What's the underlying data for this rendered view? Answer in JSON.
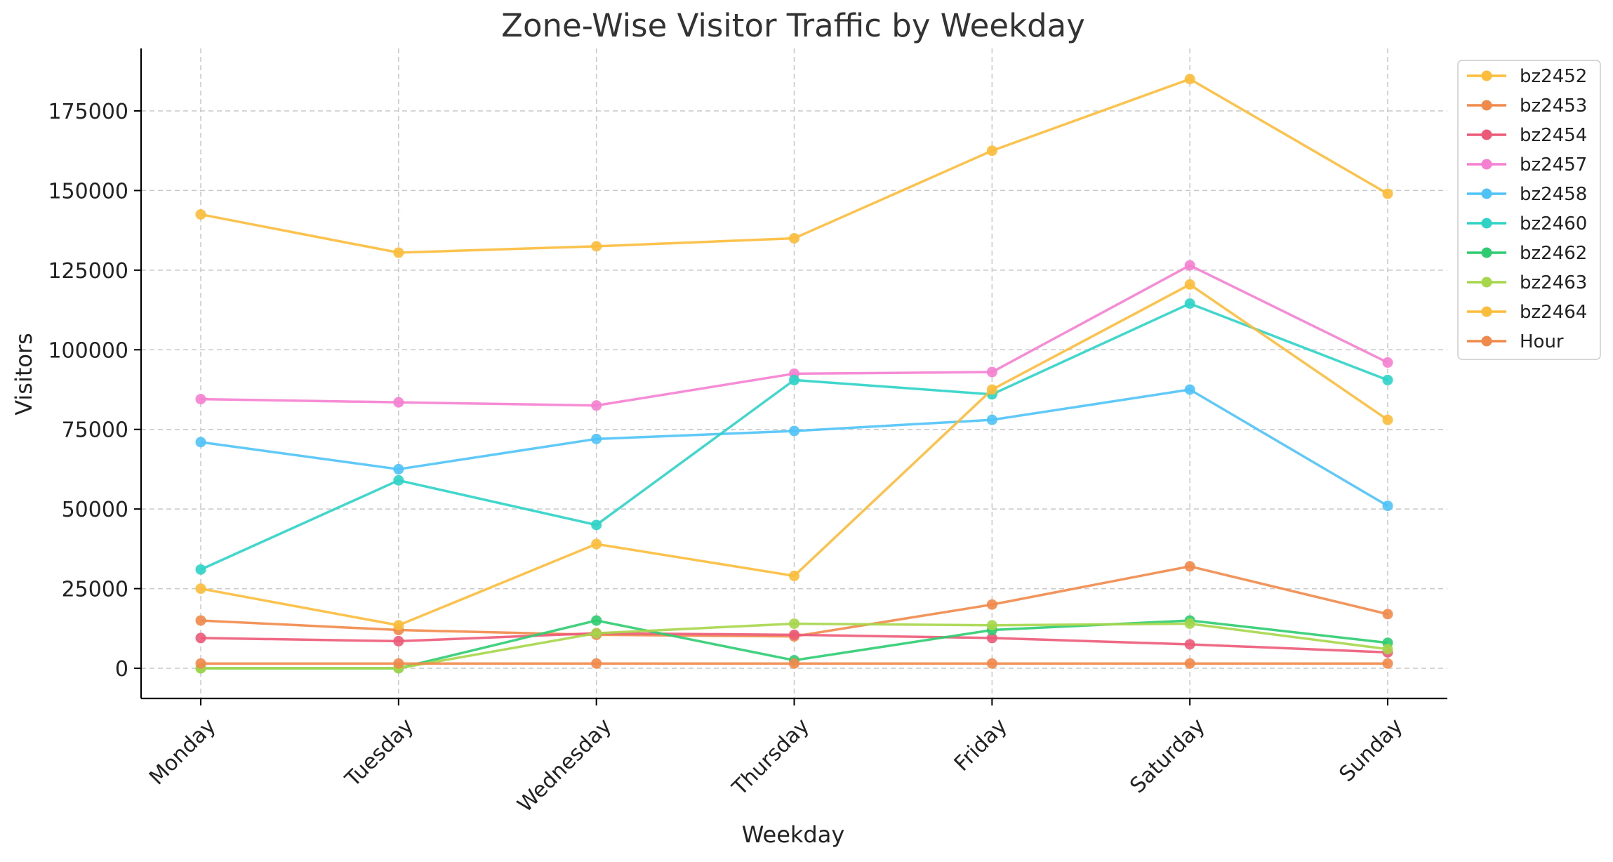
{
  "chart_data": {
    "type": "line",
    "title": "Zone-Wise Visitor Traffic by Weekday",
    "xlabel": "Weekday",
    "ylabel": "Visitors",
    "categories": [
      "Monday",
      "Tuesday",
      "Wednesday",
      "Thursday",
      "Friday",
      "Saturday",
      "Sunday"
    ],
    "ylim": [
      -9000,
      194000
    ],
    "yticks": [
      0,
      25000,
      50000,
      75000,
      100000,
      125000,
      150000,
      175000
    ],
    "grid": true,
    "legend_position": "top-right, outside plot",
    "series": [
      {
        "name": "bz2452",
        "color": "#fbbd3b",
        "values": [
          142500,
          130500,
          132500,
          135000,
          162500,
          185000,
          149000
        ]
      },
      {
        "name": "bz2453",
        "color": "#f08a4b",
        "values": [
          15000,
          12000,
          10500,
          10000,
          20000,
          32000,
          17000
        ]
      },
      {
        "name": "bz2454",
        "color": "#ec5a78",
        "values": [
          9500,
          8500,
          11000,
          10500,
          9500,
          7500,
          5000
        ]
      },
      {
        "name": "bz2457",
        "color": "#f57fd0",
        "values": [
          84500,
          83500,
          82500,
          92500,
          93000,
          126500,
          96000
        ]
      },
      {
        "name": "bz2458",
        "color": "#4fc3f7",
        "values": [
          71000,
          62500,
          72000,
          74500,
          78000,
          87500,
          51000
        ]
      },
      {
        "name": "bz2460",
        "color": "#2ed3c6",
        "values": [
          31000,
          59000,
          45000,
          90500,
          86000,
          114500,
          90500
        ]
      },
      {
        "name": "bz2462",
        "color": "#2ecc71",
        "values": [
          0,
          0,
          15000,
          2500,
          12000,
          15000,
          8000
        ]
      },
      {
        "name": "bz2463",
        "color": "#a6d64a",
        "values": [
          0,
          0,
          11000,
          14000,
          13500,
          14000,
          6000
        ]
      },
      {
        "name": "bz2464",
        "color": "#fbbd3b",
        "values": [
          25000,
          13500,
          39000,
          29000,
          87500,
          120500,
          78000
        ]
      },
      {
        "name": "Hour",
        "color": "#f08a4b",
        "values": [
          1500,
          1500,
          1500,
          1500,
          1500,
          1500,
          1500
        ]
      }
    ]
  }
}
